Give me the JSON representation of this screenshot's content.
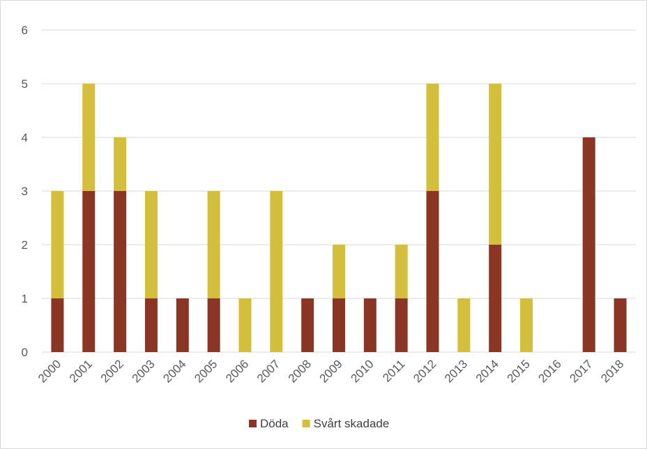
{
  "chart_data": {
    "type": "bar",
    "stacked": true,
    "categories": [
      "2000",
      "2001",
      "2002",
      "2003",
      "2004",
      "2005",
      "2006",
      "2007",
      "2008",
      "2009",
      "2010",
      "2011",
      "2012",
      "2013",
      "2014",
      "2015",
      "2016",
      "2017",
      "2018"
    ],
    "series": [
      {
        "name": "Döda",
        "color": "#8b3624",
        "values": [
          1,
          3,
          3,
          1,
          1,
          1,
          0,
          0,
          1,
          1,
          1,
          1,
          3,
          0,
          2,
          0,
          0,
          4,
          1
        ]
      },
      {
        "name": "Svårt skadade",
        "color": "#d4bf3c",
        "values": [
          2,
          2,
          1,
          2,
          0,
          2,
          1,
          3,
          0,
          1,
          0,
          1,
          2,
          1,
          3,
          1,
          0,
          0,
          0
        ]
      }
    ],
    "ylim": [
      0,
      6
    ],
    "yticks": [
      0,
      1,
      2,
      3,
      4,
      5,
      6
    ],
    "grid": true,
    "legend": "bottom"
  }
}
